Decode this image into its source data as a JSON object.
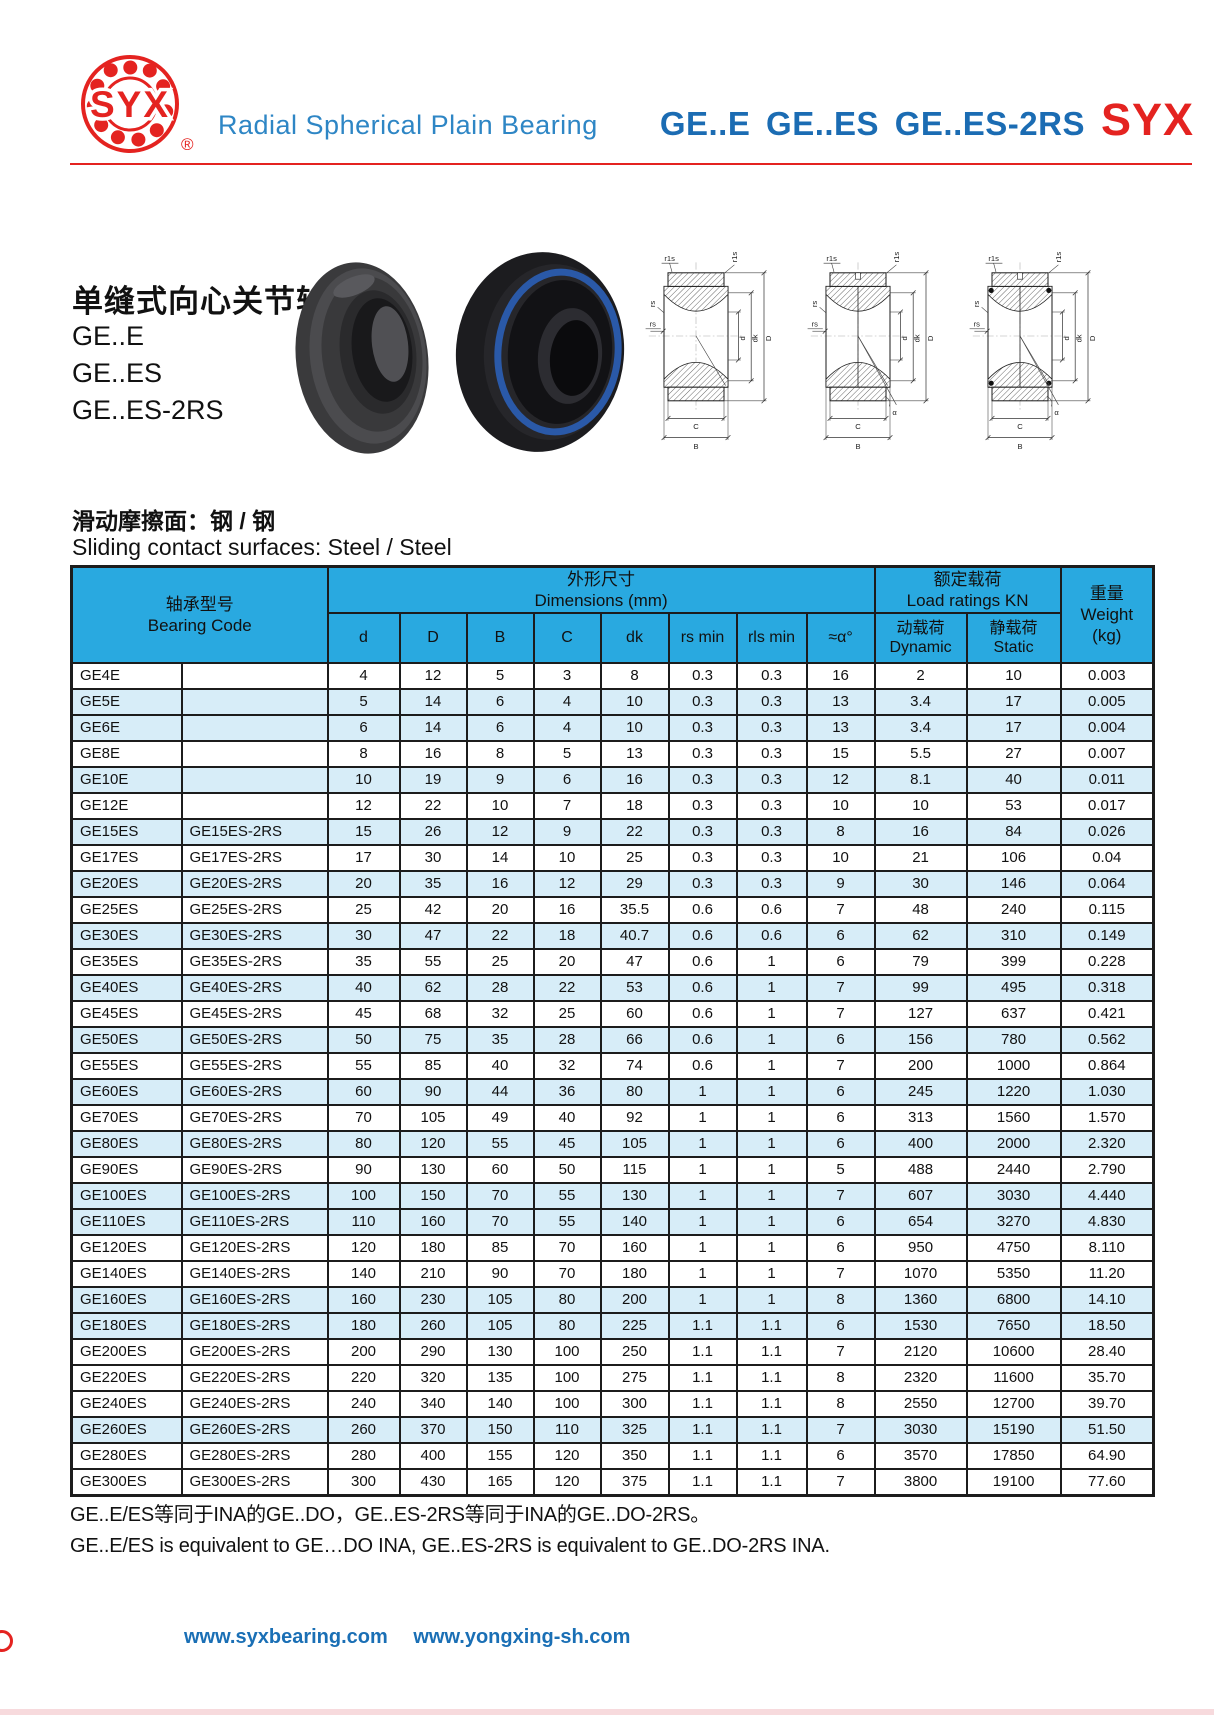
{
  "header": {
    "logo_text": "SYX",
    "registered": "®",
    "tagline": "Radial Spherical Plain Bearing",
    "series_title": "GE..E  GE..ES  GE..ES-2RS",
    "brand": "SYX",
    "accent_red": "#e42320",
    "accent_blue": "#1b6cb3",
    "tagline_blue": "#2e86c5"
  },
  "product": {
    "title_cn": "单缝式向心关节轴承",
    "models": [
      "GE..E",
      "GE..ES",
      "GE..ES-2RS"
    ]
  },
  "surfaces": {
    "cn": "滑动摩擦面：钢 / 钢",
    "en": "Sliding contact surfaces: Steel / Steel"
  },
  "drawings": {
    "labels": {
      "r1s": "r1s",
      "rs": "rs",
      "d": "d",
      "dk": "dk",
      "D": "D",
      "C": "C",
      "B": "B",
      "alpha": "α"
    },
    "variants": [
      {
        "seam": false,
        "seals": false,
        "alpha": false
      },
      {
        "seam": true,
        "seals": false,
        "alpha": true
      },
      {
        "seam": true,
        "seals": true,
        "alpha": true
      }
    ]
  },
  "table": {
    "header": {
      "code_cn": "轴承型号",
      "code_en": "Bearing Code",
      "dims_cn": "外形尺寸",
      "dims_en": "Dimensions (mm)",
      "load_cn": "额定载荷",
      "load_en": "Load ratings KN",
      "weight_cn": "重量",
      "weight_en": "Weight",
      "weight_unit": "(kg)",
      "dyn_cn": "动载荷",
      "dyn_en": "Dynamic",
      "stat_cn": "静载荷",
      "stat_en": "Static",
      "dim_cols": [
        "d",
        "D",
        "B",
        "C",
        "dk",
        "rs min",
        "rls min",
        "≈α°"
      ],
      "header_bg": "#29a9e0",
      "shade_bg": "#d7edf8"
    },
    "rows": [
      {
        "c": [
          "GE4E",
          "",
          "4",
          "12",
          "5",
          "3",
          "8",
          "0.3",
          "0.3",
          "16",
          "2",
          "10",
          "0.003"
        ],
        "s": 0
      },
      {
        "c": [
          "GE5E",
          "",
          "5",
          "14",
          "6",
          "4",
          "10",
          "0.3",
          "0.3",
          "13",
          "3.4",
          "17",
          "0.005"
        ],
        "s": 1
      },
      {
        "c": [
          "GE6E",
          "",
          "6",
          "14",
          "6",
          "4",
          "10",
          "0.3",
          "0.3",
          "13",
          "3.4",
          "17",
          "0.004"
        ],
        "s": 1
      },
      {
        "c": [
          "GE8E",
          "",
          "8",
          "16",
          "8",
          "5",
          "13",
          "0.3",
          "0.3",
          "15",
          "5.5",
          "27",
          "0.007"
        ],
        "s": 0
      },
      {
        "c": [
          "GE10E",
          "",
          "10",
          "19",
          "9",
          "6",
          "16",
          "0.3",
          "0.3",
          "12",
          "8.1",
          "40",
          "0.011"
        ],
        "s": 1
      },
      {
        "c": [
          "GE12E",
          "",
          "12",
          "22",
          "10",
          "7",
          "18",
          "0.3",
          "0.3",
          "10",
          "10",
          "53",
          "0.017"
        ],
        "s": 0
      },
      {
        "c": [
          "GE15ES",
          "GE15ES-2RS",
          "15",
          "26",
          "12",
          "9",
          "22",
          "0.3",
          "0.3",
          "8",
          "16",
          "84",
          "0.026"
        ],
        "s": 1
      },
      {
        "c": [
          "GE17ES",
          "GE17ES-2RS",
          "17",
          "30",
          "14",
          "10",
          "25",
          "0.3",
          "0.3",
          "10",
          "21",
          "106",
          "0.04"
        ],
        "s": 0
      },
      {
        "c": [
          "GE20ES",
          "GE20ES-2RS",
          "20",
          "35",
          "16",
          "12",
          "29",
          "0.3",
          "0.3",
          "9",
          "30",
          "146",
          "0.064"
        ],
        "s": 1
      },
      {
        "c": [
          "GE25ES",
          "GE25ES-2RS",
          "25",
          "42",
          "20",
          "16",
          "35.5",
          "0.6",
          "0.6",
          "7",
          "48",
          "240",
          "0.115"
        ],
        "s": 0
      },
      {
        "c": [
          "GE30ES",
          "GE30ES-2RS",
          "30",
          "47",
          "22",
          "18",
          "40.7",
          "0.6",
          "0.6",
          "6",
          "62",
          "310",
          "0.149"
        ],
        "s": 1
      },
      {
        "c": [
          "GE35ES",
          "GE35ES-2RS",
          "35",
          "55",
          "25",
          "20",
          "47",
          "0.6",
          "1",
          "6",
          "79",
          "399",
          "0.228"
        ],
        "s": 0
      },
      {
        "c": [
          "GE40ES",
          "GE40ES-2RS",
          "40",
          "62",
          "28",
          "22",
          "53",
          "0.6",
          "1",
          "7",
          "99",
          "495",
          "0.318"
        ],
        "s": 1
      },
      {
        "c": [
          "GE45ES",
          "GE45ES-2RS",
          "45",
          "68",
          "32",
          "25",
          "60",
          "0.6",
          "1",
          "7",
          "127",
          "637",
          "0.421"
        ],
        "s": 0
      },
      {
        "c": [
          "GE50ES",
          "GE50ES-2RS",
          "50",
          "75",
          "35",
          "28",
          "66",
          "0.6",
          "1",
          "6",
          "156",
          "780",
          "0.562"
        ],
        "s": 1
      },
      {
        "c": [
          "GE55ES",
          "GE55ES-2RS",
          "55",
          "85",
          "40",
          "32",
          "74",
          "0.6",
          "1",
          "7",
          "200",
          "1000",
          "0.864"
        ],
        "s": 0
      },
      {
        "c": [
          "GE60ES",
          "GE60ES-2RS",
          "60",
          "90",
          "44",
          "36",
          "80",
          "1",
          "1",
          "6",
          "245",
          "1220",
          "1.030"
        ],
        "s": 1
      },
      {
        "c": [
          "GE70ES",
          "GE70ES-2RS",
          "70",
          "105",
          "49",
          "40",
          "92",
          "1",
          "1",
          "6",
          "313",
          "1560",
          "1.570"
        ],
        "s": 0
      },
      {
        "c": [
          "GE80ES",
          "GE80ES-2RS",
          "80",
          "120",
          "55",
          "45",
          "105",
          "1",
          "1",
          "6",
          "400",
          "2000",
          "2.320"
        ],
        "s": 1
      },
      {
        "c": [
          "GE90ES",
          "GE90ES-2RS",
          "90",
          "130",
          "60",
          "50",
          "115",
          "1",
          "1",
          "5",
          "488",
          "2440",
          "2.790"
        ],
        "s": 0
      },
      {
        "c": [
          "GE100ES",
          "GE100ES-2RS",
          "100",
          "150",
          "70",
          "55",
          "130",
          "1",
          "1",
          "7",
          "607",
          "3030",
          "4.440"
        ],
        "s": 1
      },
      {
        "c": [
          "GE110ES",
          "GE110ES-2RS",
          "110",
          "160",
          "70",
          "55",
          "140",
          "1",
          "1",
          "6",
          "654",
          "3270",
          "4.830"
        ],
        "s": 1
      },
      {
        "c": [
          "GE120ES",
          "GE120ES-2RS",
          "120",
          "180",
          "85",
          "70",
          "160",
          "1",
          "1",
          "6",
          "950",
          "4750",
          "8.110"
        ],
        "s": 0
      },
      {
        "c": [
          "GE140ES",
          "GE140ES-2RS",
          "140",
          "210",
          "90",
          "70",
          "180",
          "1",
          "1",
          "7",
          "1070",
          "5350",
          "11.20"
        ],
        "s": 0
      },
      {
        "c": [
          "GE160ES",
          "GE160ES-2RS",
          "160",
          "230",
          "105",
          "80",
          "200",
          "1",
          "1",
          "8",
          "1360",
          "6800",
          "14.10"
        ],
        "s": 1
      },
      {
        "c": [
          "GE180ES",
          "GE180ES-2RS",
          "180",
          "260",
          "105",
          "80",
          "225",
          "1.1",
          "1.1",
          "6",
          "1530",
          "7650",
          "18.50"
        ],
        "s": 1
      },
      {
        "c": [
          "GE200ES",
          "GE200ES-2RS",
          "200",
          "290",
          "130",
          "100",
          "250",
          "1.1",
          "1.1",
          "7",
          "2120",
          "10600",
          "28.40"
        ],
        "s": 0
      },
      {
        "c": [
          "GE220ES",
          "GE220ES-2RS",
          "220",
          "320",
          "135",
          "100",
          "275",
          "1.1",
          "1.1",
          "8",
          "2320",
          "11600",
          "35.70"
        ],
        "s": 0
      },
      {
        "c": [
          "GE240ES",
          "GE240ES-2RS",
          "240",
          "340",
          "140",
          "100",
          "300",
          "1.1",
          "1.1",
          "8",
          "2550",
          "12700",
          "39.70"
        ],
        "s": 0
      },
      {
        "c": [
          "GE260ES",
          "GE260ES-2RS",
          "260",
          "370",
          "150",
          "110",
          "325",
          "1.1",
          "1.1",
          "7",
          "3030",
          "15190",
          "51.50"
        ],
        "s": 1
      },
      {
        "c": [
          "GE280ES",
          "GE280ES-2RS",
          "280",
          "400",
          "155",
          "120",
          "350",
          "1.1",
          "1.1",
          "6",
          "3570",
          "17850",
          "64.90"
        ],
        "s": 0
      },
      {
        "c": [
          "GE300ES",
          "GE300ES-2RS",
          "300",
          "430",
          "165",
          "120",
          "375",
          "1.1",
          "1.1",
          "7",
          "3800",
          "19100",
          "77.60"
        ],
        "s": 0
      }
    ]
  },
  "notes": {
    "cn": "GE..E/ES等同于INA的GE..DO，GE..ES-2RS等同于INA的GE..DO-2RS。",
    "en": "GE..E/ES is equivalent to GE…DO INA, GE..ES-2RS is equivalent to GE..DO-2RS INA."
  },
  "footer": {
    "links": [
      "www.syxbearing.com",
      "www.yongxing-sh.com"
    ]
  }
}
